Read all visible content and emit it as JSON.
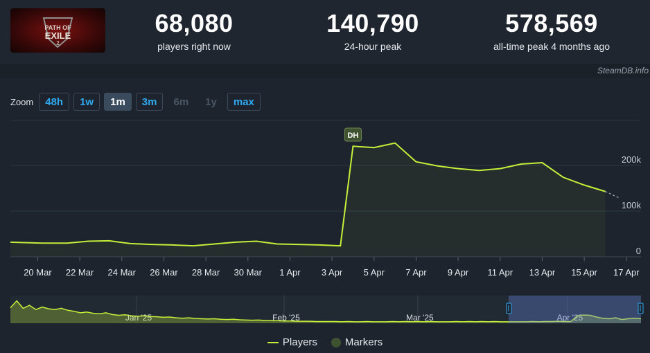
{
  "header": {
    "stats": [
      {
        "value": "68,080",
        "label": "players right now"
      },
      {
        "value": "140,790",
        "label": "24-hour peak"
      },
      {
        "value": "578,569",
        "label": "all-time peak 4 months ago"
      }
    ],
    "logo_text": "PATH OF EXILE",
    "credit": "SteamDB.info"
  },
  "zoom": {
    "label": "Zoom",
    "buttons": [
      {
        "label": "48h",
        "state": "normal"
      },
      {
        "label": "1w",
        "state": "normal"
      },
      {
        "label": "1m",
        "state": "active"
      },
      {
        "label": "3m",
        "state": "normal"
      },
      {
        "label": "6m",
        "state": "disabled"
      },
      {
        "label": "1y",
        "state": "disabled"
      },
      {
        "label": "max",
        "state": "normal"
      }
    ]
  },
  "legend": {
    "players": "Players",
    "markers": "Markers"
  },
  "colors": {
    "line": "#c5f03a",
    "marker": "#3f5230",
    "accent": "#2fa8ef"
  },
  "chart_data": {
    "type": "line",
    "ylim": [
      0,
      300000
    ],
    "yticks": [
      {
        "v": 0,
        "label": "0"
      },
      {
        "v": 100000,
        "label": "100k"
      },
      {
        "v": 200000,
        "label": "200k"
      }
    ],
    "xlim": [
      0,
      30
    ],
    "xticks": [
      {
        "d": 1.3,
        "label": "20 Mar"
      },
      {
        "d": 3.3,
        "label": "22 Mar"
      },
      {
        "d": 5.3,
        "label": "24 Mar"
      },
      {
        "d": 7.3,
        "label": "26 Mar"
      },
      {
        "d": 9.3,
        "label": "28 Mar"
      },
      {
        "d": 11.3,
        "label": "30 Mar"
      },
      {
        "d": 13.3,
        "label": "1 Apr"
      },
      {
        "d": 15.3,
        "label": "3 Apr"
      },
      {
        "d": 17.3,
        "label": "5 Apr"
      },
      {
        "d": 19.3,
        "label": "7 Apr"
      },
      {
        "d": 21.3,
        "label": "9 Apr"
      },
      {
        "d": 23.3,
        "label": "11 Apr"
      },
      {
        "d": 25.3,
        "label": "13 Apr"
      },
      {
        "d": 27.3,
        "label": "15 Apr"
      },
      {
        "d": 29.3,
        "label": "17 Apr"
      }
    ],
    "series": [
      {
        "name": "Players",
        "points": [
          [
            0,
            32000
          ],
          [
            1.5,
            30000
          ],
          [
            2.7,
            30000
          ],
          [
            3.7,
            34000
          ],
          [
            4.7,
            35000
          ],
          [
            5.7,
            29000
          ],
          [
            6.7,
            27000
          ],
          [
            7.7,
            26000
          ],
          [
            8.7,
            24000
          ],
          [
            9.7,
            28000
          ],
          [
            10.7,
            32000
          ],
          [
            11.7,
            34000
          ],
          [
            12.7,
            28000
          ],
          [
            13.7,
            27000
          ],
          [
            14.7,
            26000
          ],
          [
            15.7,
            24000
          ],
          [
            16.3,
            242000
          ],
          [
            17.3,
            239000
          ],
          [
            18.3,
            249000
          ],
          [
            19.3,
            208000
          ],
          [
            20.3,
            199000
          ],
          [
            21.3,
            193000
          ],
          [
            22.3,
            189000
          ],
          [
            23.3,
            193000
          ],
          [
            24.3,
            203000
          ],
          [
            25.3,
            206000
          ],
          [
            26.3,
            174000
          ],
          [
            27.3,
            157000
          ],
          [
            28.3,
            143000
          ]
        ],
        "tail": [
          [
            28.3,
            143000
          ],
          [
            29.0,
            128000
          ]
        ]
      }
    ],
    "markers": [
      {
        "d": 16.3,
        "label": "DH"
      }
    ],
    "navigator": {
      "labels": [
        {
          "f": 0.2,
          "label": "Jan '25"
        },
        {
          "f": 0.434,
          "label": "Feb '25"
        },
        {
          "f": 0.646,
          "label": "Mar '25"
        },
        {
          "f": 0.884,
          "label": "Apr '25"
        }
      ],
      "values": [
        0.62,
        0.9,
        0.6,
        0.72,
        0.55,
        0.65,
        0.58,
        0.55,
        0.6,
        0.52,
        0.48,
        0.42,
        0.45,
        0.4,
        0.38,
        0.42,
        0.35,
        0.32,
        0.34,
        0.3,
        0.28,
        0.3,
        0.27,
        0.26,
        0.24,
        0.25,
        0.22,
        0.2,
        0.22,
        0.19,
        0.18,
        0.17,
        0.18,
        0.16,
        0.15,
        0.16,
        0.14,
        0.13,
        0.12,
        0.13,
        0.11,
        0.1,
        0.1,
        0.09,
        0.09,
        0.08,
        0.08,
        0.08,
        0.07,
        0.07,
        0.07,
        0.07,
        0.06,
        0.07,
        0.06,
        0.06,
        0.07,
        0.06,
        0.06,
        0.06,
        0.07,
        0.06,
        0.07,
        0.06,
        0.07,
        0.06,
        0.07,
        0.06,
        0.06,
        0.06,
        0.07,
        0.06,
        0.07,
        0.06,
        0.07,
        0.06,
        0.07,
        0.06,
        0.06,
        0.06,
        0.06,
        0.06,
        0.07,
        0.06,
        0.07,
        0.07,
        0.08,
        0.07,
        0.07,
        0.3,
        0.33,
        0.32,
        0.25,
        0.2,
        0.18,
        0.22,
        0.15,
        0.18,
        0.2,
        0.18
      ],
      "selection": [
        0.79,
        1.0
      ]
    }
  }
}
